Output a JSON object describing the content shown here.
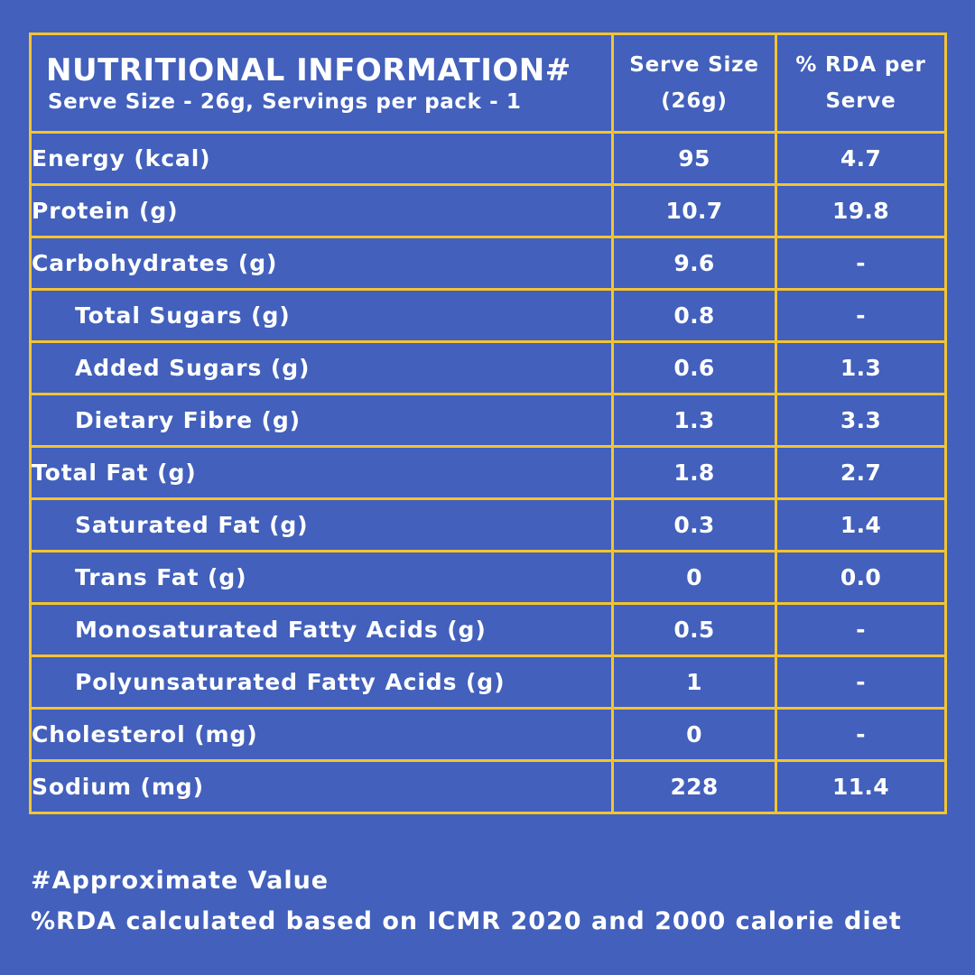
{
  "header": {
    "title": "NUTRITIONAL INFORMATION#",
    "subtitle": "Serve Size - 26g, Servings per pack - 1",
    "col_serve_line1": "Serve Size",
    "col_serve_line2": "(26g)",
    "col_rda_line1": "% RDA per",
    "col_rda_line2": "Serve"
  },
  "rows": [
    {
      "name": "Energy (kcal)",
      "serve": "95",
      "rda": "4.7",
      "indent": false
    },
    {
      "name": "Protein (g)",
      "serve": "10.7",
      "rda": "19.8",
      "indent": false
    },
    {
      "name": "Carbohydrates (g)",
      "serve": "9.6",
      "rda": "-",
      "indent": false
    },
    {
      "name": "Total Sugars (g)",
      "serve": "0.8",
      "rda": "-",
      "indent": true
    },
    {
      "name": "Added Sugars (g)",
      "serve": "0.6",
      "rda": "1.3",
      "indent": true
    },
    {
      "name": "Dietary Fibre (g)",
      "serve": "1.3",
      "rda": "3.3",
      "indent": true
    },
    {
      "name": "Total Fat (g)",
      "serve": "1.8",
      "rda": "2.7",
      "indent": false
    },
    {
      "name": "Saturated Fat (g)",
      "serve": "0.3",
      "rda": "1.4",
      "indent": true
    },
    {
      "name": "Trans Fat (g)",
      "serve": "0",
      "rda": "0.0",
      "indent": true
    },
    {
      "name": "Monosaturated Fatty Acids (g)",
      "serve": "0.5",
      "rda": "-",
      "indent": true
    },
    {
      "name": "Polyunsaturated Fatty Acids (g)",
      "serve": "1",
      "rda": "-",
      "indent": true
    },
    {
      "name": "Cholesterol (mg)",
      "serve": "0",
      "rda": "-",
      "indent": false
    },
    {
      "name": "Sodium (mg)",
      "serve": "228",
      "rda": "11.4",
      "indent": false
    }
  ],
  "footer": {
    "note1": "#Approximate Value",
    "note2": "%RDA calculated based on ICMR 2020 and 2000 calorie diet"
  },
  "colors": {
    "background": "#4260bc",
    "border": "#f4c430",
    "text": "#ffffff"
  }
}
